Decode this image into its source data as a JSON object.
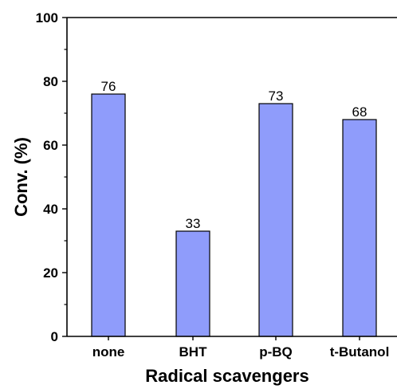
{
  "chart_data": {
    "type": "bar",
    "categories": [
      "none",
      "BHT",
      "p-BQ",
      "t-Butanol"
    ],
    "values": [
      76,
      33,
      73,
      68
    ],
    "data_labels": [
      "76",
      "33",
      "73",
      "68"
    ],
    "xlabel": "Radical scavengers",
    "ylabel": "Conv. (%)",
    "ylim": [
      0,
      100
    ],
    "yticks": [
      0,
      20,
      40,
      60,
      80,
      100
    ],
    "ytick_labels": [
      "0",
      "20",
      "40",
      "60",
      "80",
      "100"
    ],
    "grid": false,
    "bar_color": "#8f9cfb",
    "bar_edge_color": "#000000"
  }
}
